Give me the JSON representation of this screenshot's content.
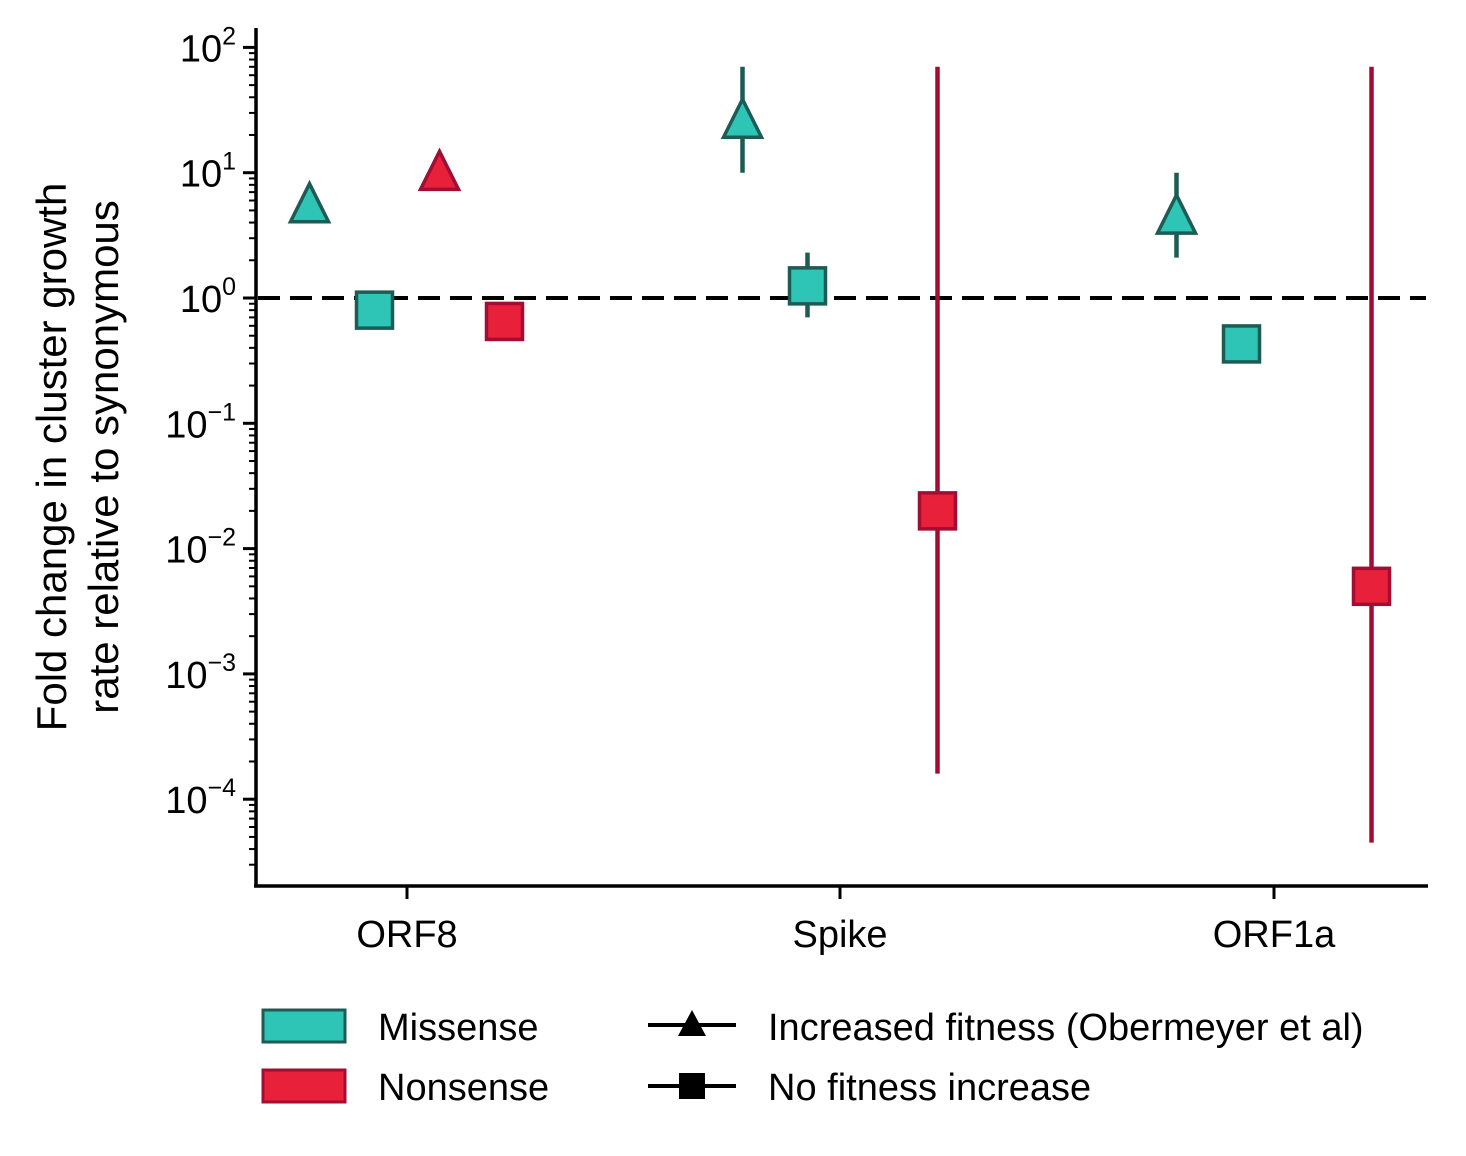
{
  "chart_data": {
    "type": "scatter",
    "title": "",
    "ylabel_line1": "Fold change in cluster growth",
    "ylabel_line2": "rate relative to synonymous",
    "xlabel": "",
    "yscale": "log",
    "ylim": [
      2e-05,
      150
    ],
    "categories": [
      "ORF8",
      "Spike",
      "ORF1a"
    ],
    "yticks": [
      {
        "value": 100,
        "base": "10",
        "exp": "2"
      },
      {
        "value": 10,
        "base": "10",
        "exp": "1"
      },
      {
        "value": 1,
        "base": "10",
        "exp": "0"
      },
      {
        "value": 0.1,
        "base": "10",
        "exp": "−1"
      },
      {
        "value": 0.01,
        "base": "10",
        "exp": "−2"
      },
      {
        "value": 0.001,
        "base": "10",
        "exp": "−3"
      },
      {
        "value": 0.0001,
        "base": "10",
        "exp": "−4"
      }
    ],
    "reference_line": {
      "y": 1,
      "style": "dashed"
    },
    "points": [
      {
        "category": "ORF8",
        "type": "Missense",
        "fitness": "Increased fitness (Obermeyer et al)",
        "offset": -1.5,
        "y": 5.3,
        "err_low": null,
        "err_high": null
      },
      {
        "category": "ORF8",
        "type": "Missense",
        "fitness": "No fitness increase",
        "offset": -0.5,
        "y": 0.8,
        "err_low": null,
        "err_high": null
      },
      {
        "category": "ORF8",
        "type": "Nonsense",
        "fitness": "Increased fitness (Obermeyer et al)",
        "offset": 0.5,
        "y": 9.6,
        "err_low": null,
        "err_high": null
      },
      {
        "category": "ORF8",
        "type": "Nonsense",
        "fitness": "No fitness increase",
        "offset": 1.5,
        "y": 0.65,
        "err_low": null,
        "err_high": null
      },
      {
        "category": "Spike",
        "type": "Missense",
        "fitness": "Increased fitness (Obermeyer et al)",
        "offset": -1.5,
        "y": 25,
        "err_low": 10,
        "err_high": 70
      },
      {
        "category": "Spike",
        "type": "Missense",
        "fitness": "No fitness increase",
        "offset": -0.5,
        "y": 1.25,
        "err_low": 0.7,
        "err_high": 2.3
      },
      {
        "category": "Spike",
        "type": "Nonsense",
        "fitness": "No fitness increase",
        "offset": 1.5,
        "y": 0.02,
        "err_low": 0.00016,
        "err_high": 70
      },
      {
        "category": "ORF1a",
        "type": "Missense",
        "fitness": "Increased fitness (Obermeyer et al)",
        "offset": -1.5,
        "y": 4.3,
        "err_low": 2.1,
        "err_high": 10
      },
      {
        "category": "ORF1a",
        "type": "Missense",
        "fitness": "No fitness increase",
        "offset": -0.5,
        "y": 0.43,
        "err_low": null,
        "err_high": null
      },
      {
        "category": "ORF1a",
        "type": "Nonsense",
        "fitness": "No fitness increase",
        "offset": 1.5,
        "y": 0.005,
        "err_low": 4.5e-05,
        "err_high": 70
      }
    ],
    "colors": {
      "Missense": {
        "fill": "#2ec4b6",
        "edge": "#1d5c55"
      },
      "Nonsense": {
        "fill": "#e8203a",
        "edge": "#a30d34"
      }
    },
    "legend": {
      "placement": "bottom",
      "color_entries": [
        {
          "label": "Missense",
          "key": "Missense"
        },
        {
          "label": "Nonsense",
          "key": "Nonsense"
        }
      ],
      "marker_entries": [
        {
          "label": "Increased fitness (Obermeyer et al)",
          "marker": "triangle"
        },
        {
          "label": "No fitness increase",
          "marker": "square"
        }
      ]
    }
  }
}
